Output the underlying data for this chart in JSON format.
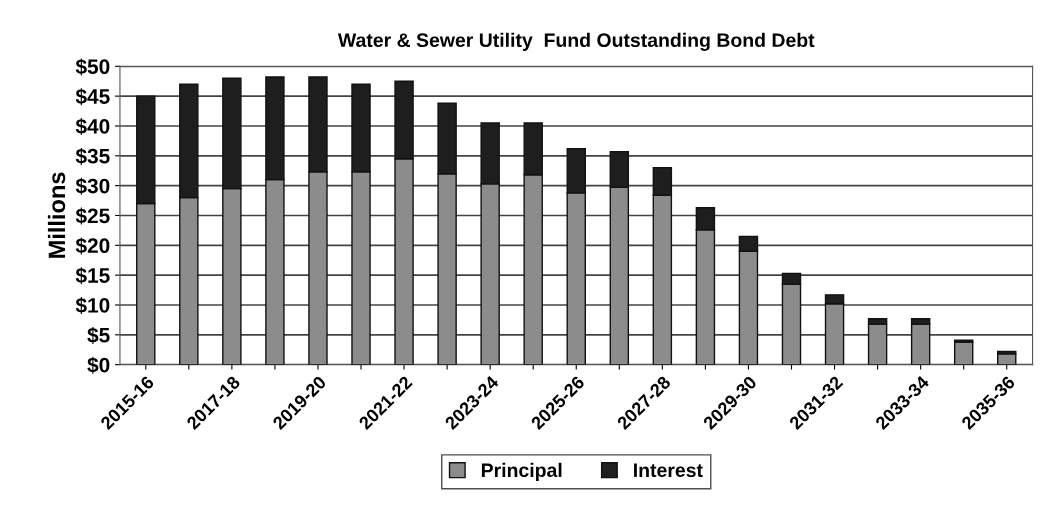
{
  "chart_data": {
    "type": "bar",
    "title": "Water & Sewer Utility  Fund Outstanding Bond Debt",
    "ylabel": "Millions",
    "categories": [
      "2015-16",
      null,
      "2017-18",
      null,
      "2019-20",
      null,
      "2021-22",
      null,
      "2023-24",
      null,
      "2025-26",
      null,
      "2027-28",
      null,
      "2029-30",
      null,
      "2031-32",
      null,
      "2033-34",
      null,
      "2035-36"
    ],
    "stacked": true,
    "series": [
      {
        "name": "Principal",
        "color": "#8c8c8c",
        "values": [
          27,
          28,
          29.5,
          31,
          32.3,
          32.3,
          34.5,
          32,
          30.3,
          31.8,
          28.8,
          29.7,
          28.4,
          22.6,
          19,
          13.5,
          10.2,
          6.8,
          6.8,
          3.8,
          1.8
        ]
      },
      {
        "name": "Interest",
        "color": "#1e1e1e",
        "values": [
          18,
          19,
          18.5,
          17.2,
          15.9,
          14.7,
          13,
          11.8,
          10.2,
          8.7,
          7.4,
          6,
          4.6,
          3.7,
          2.5,
          1.8,
          1.5,
          0.9,
          0.9,
          0.3,
          0.4
        ]
      }
    ],
    "ylim": [
      0,
      50
    ],
    "yticks": [
      {
        "value": 0,
        "label": "$0"
      },
      {
        "value": 5,
        "label": "$5"
      },
      {
        "value": 10,
        "label": "$10"
      },
      {
        "value": 15,
        "label": "$15"
      },
      {
        "value": 20,
        "label": "$20"
      },
      {
        "value": 25,
        "label": "$25"
      },
      {
        "value": 30,
        "label": "$30"
      },
      {
        "value": 35,
        "label": "$35"
      },
      {
        "value": 40,
        "label": "$40"
      },
      {
        "value": 45,
        "label": "$45"
      },
      {
        "value": 50,
        "label": "$50"
      }
    ],
    "grid": "y",
    "legend": "bottom"
  }
}
